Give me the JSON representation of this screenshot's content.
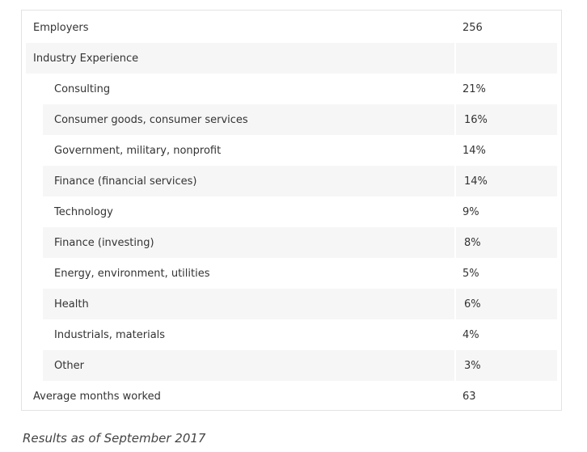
{
  "table": {
    "rows": [
      {
        "label": "Employers",
        "value": "256"
      },
      {
        "label": "Industry Experience",
        "value": ""
      },
      {
        "label": "Consulting",
        "value": "21%"
      },
      {
        "label": "Consumer goods, consumer services",
        "value": "16%"
      },
      {
        "label": "Government, military, nonprofit",
        "value": "14%"
      },
      {
        "label": "Finance (financial services)",
        "value": "14%"
      },
      {
        "label": "Technology",
        "value": "9%"
      },
      {
        "label": "Finance (investing)",
        "value": "8%"
      },
      {
        "label": "Energy, environment, utilities",
        "value": "5%"
      },
      {
        "label": "Health",
        "value": "6%"
      },
      {
        "label": "Industrials, materials",
        "value": "4%"
      },
      {
        "label": "Other",
        "value": "3%"
      },
      {
        "label": "Average months worked",
        "value": "63"
      }
    ]
  },
  "caption": "Results as of September 2017",
  "colors": {
    "shaded_row": "#f6f6f6",
    "border": "#e3e3e3",
    "text": "#333333"
  }
}
